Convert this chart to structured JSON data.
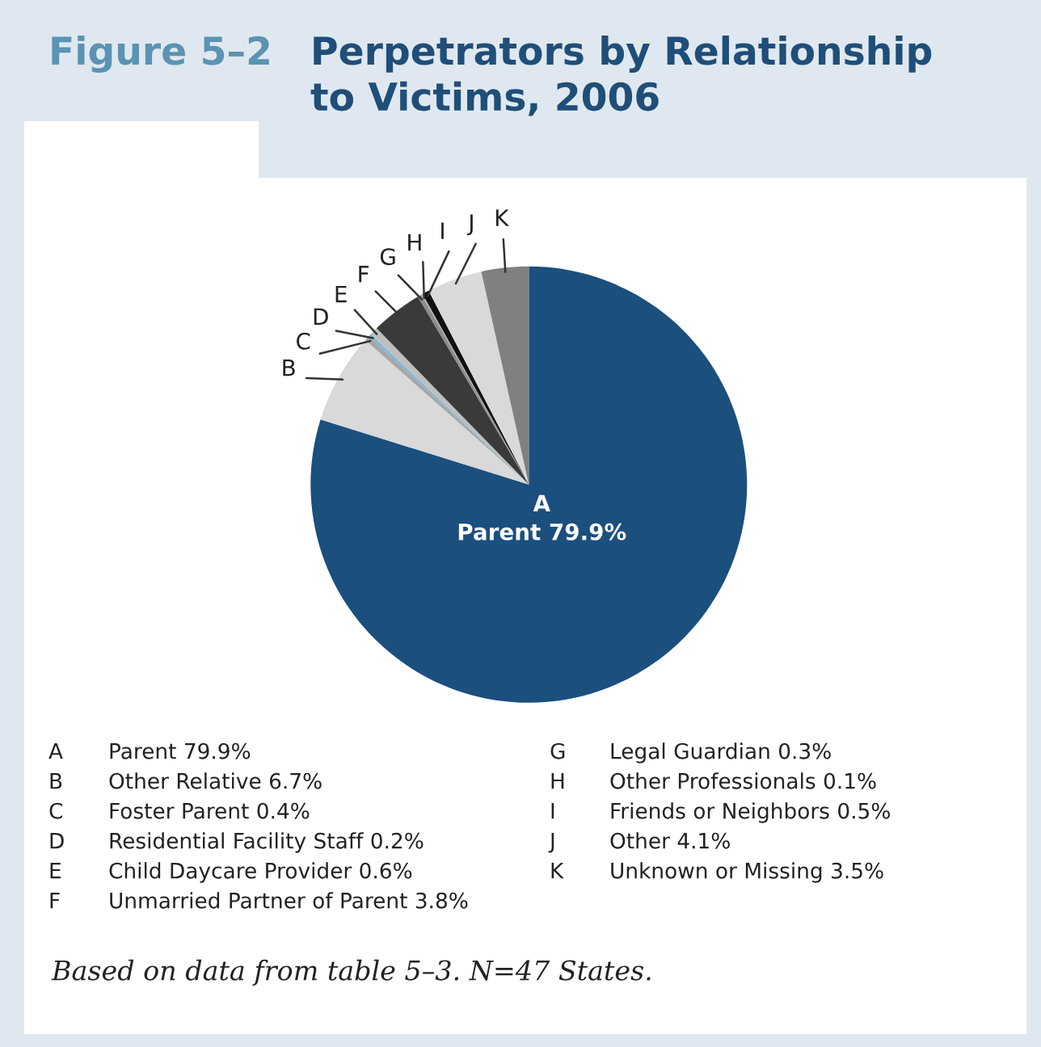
{
  "chart_data": {
    "type": "pie",
    "subtitle": "Figure 5–2",
    "title": "Perpetrators by Relationship\nto Victims, 2006",
    "categories": [
      "A",
      "B",
      "C",
      "D",
      "E",
      "F",
      "G",
      "H",
      "I",
      "J",
      "K"
    ],
    "values": [
      79.9,
      6.7,
      0.4,
      0.2,
      0.6,
      3.8,
      0.3,
      0.1,
      0.5,
      4.1,
      3.5
    ],
    "colors": [
      "#1b4f7e",
      "#d9d9d9",
      "#a6a6a6",
      "#7bb8d9",
      "#bfbfbf",
      "#3a3a3a",
      "#8c8c8c",
      "#b0b0b0",
      "#111111",
      "#d9d9d9",
      "#808080"
    ],
    "annotations": [
      "Parent 79.9%",
      "Other Relative 6.7%",
      "Foster Parent 0.4%",
      "Residential Facility Staff 0.2%",
      "Child Daycare Provider 0.6%",
      "Unmarried Partner of Parent 3.8%",
      "Legal Guardian 0.3%",
      "Other Professionals 0.1%",
      "Friends or Neighbors 0.5%",
      "Other 4.1%",
      "Unknown or Missing 3.5%",
      "Based on data from table 5–3. N=47 States."
    ]
  }
}
